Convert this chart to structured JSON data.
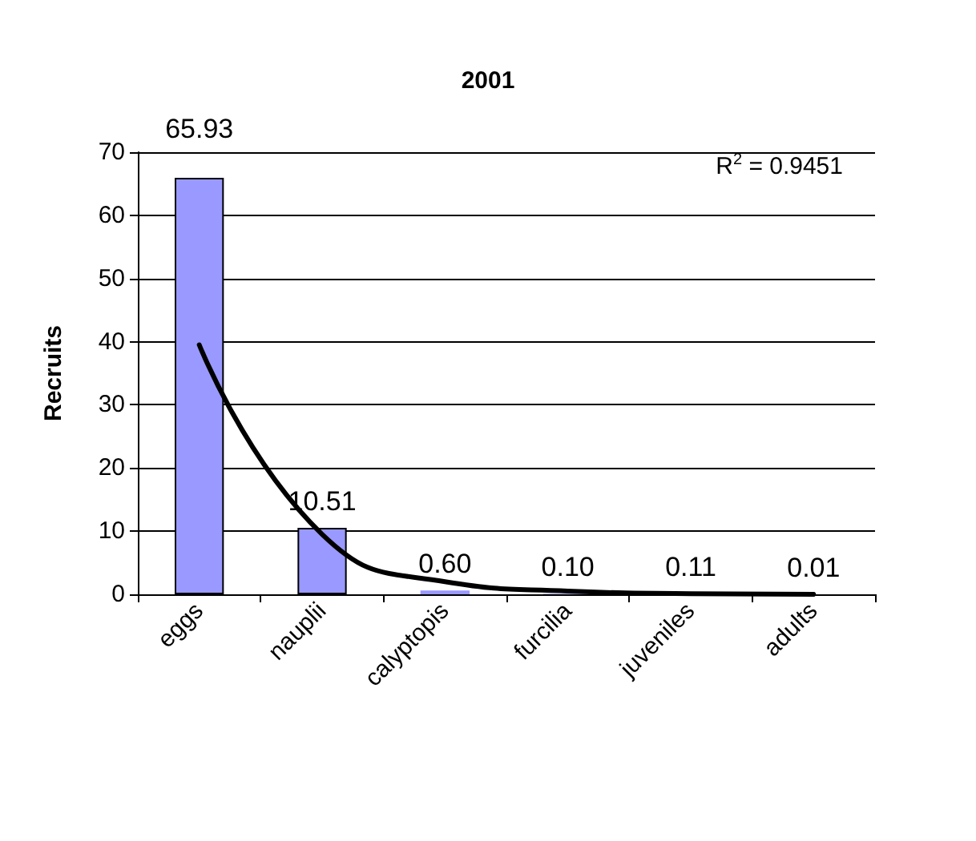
{
  "chart_data": {
    "type": "bar",
    "title": "2001",
    "ylabel": "Recruits",
    "categories": [
      "eggs",
      "nauplii",
      "calyptopis",
      "furcilia",
      "juveniles",
      "adults"
    ],
    "series": [
      {
        "color": "#9999ff",
        "values": [
          65.93,
          10.51,
          0.6,
          0.1,
          0.11,
          0.01
        ],
        "value_labels": [
          "65.93",
          "10.51",
          "0.60",
          "0.10",
          "0.11",
          "0.01"
        ]
      },
      {
        "type": "line",
        "color": "#000000",
        "x": [
          "eggs",
          "nauplii",
          "calyptopis",
          "furcilia",
          "juveniles",
          "adults"
        ],
        "values": [
          39.5,
          9.5,
          2,
          0.5,
          0.1,
          0
        ],
        "marker": "none"
      }
    ],
    "ylim": [
      0,
      70
    ],
    "yticks": [
      0,
      10,
      20,
      30,
      40,
      50,
      60,
      70
    ],
    "grid": "y",
    "annotations": [
      "R$^{2}$ = 0.9451"
    ]
  }
}
